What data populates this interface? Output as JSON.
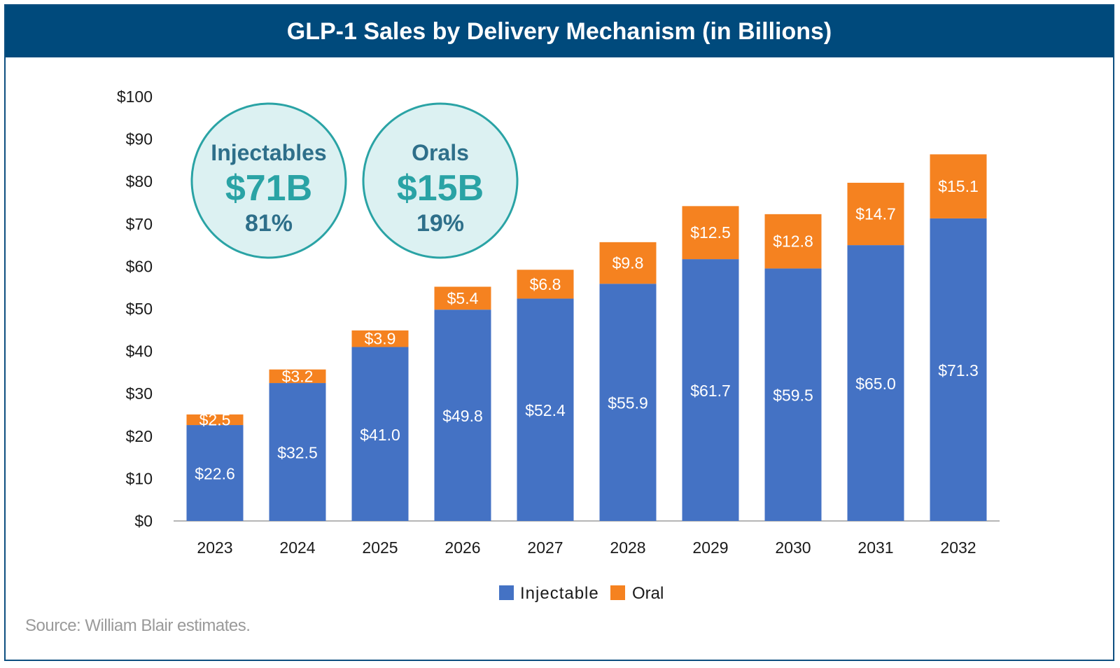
{
  "title": "GLP-1 Sales by Delivery Mechanism (in Billions)",
  "source": "Source: William Blair estimates.",
  "callouts": [
    {
      "label": "Injectables",
      "value": "$71B",
      "share": "81%"
    },
    {
      "label": "Orals",
      "value": "$15B",
      "share": "19%"
    }
  ],
  "colors": {
    "injectable": "#4472c4",
    "oral": "#f58220",
    "header": "#004a7c",
    "callout": "#2aa3a5",
    "callout_fill": "#dcf1f2",
    "callout_text": "#2e6f8a"
  },
  "chart_data": {
    "type": "bar",
    "stacked": true,
    "title": "GLP-1 Sales by Delivery Mechanism (in Billions)",
    "categories": [
      "2023",
      "2024",
      "2025",
      "2026",
      "2027",
      "2028",
      "2029",
      "2030",
      "2031",
      "2032"
    ],
    "series": [
      {
        "name": "Injectable",
        "values": [
          22.6,
          32.5,
          41.0,
          49.8,
          52.4,
          55.9,
          61.7,
          59.5,
          65.0,
          71.3
        ],
        "labels": [
          "$22.6",
          "$32.5",
          "$41.0",
          "$49.8",
          "$52.4",
          "$55.9",
          "$61.7",
          "$59.5",
          "$65.0",
          "$71.3"
        ]
      },
      {
        "name": "Oral",
        "values": [
          2.5,
          3.2,
          3.9,
          5.4,
          6.8,
          9.8,
          12.5,
          12.8,
          14.7,
          15.1
        ],
        "labels": [
          "$2.5",
          "$3.2",
          "$3.9",
          "$5.4",
          "$6.8",
          "$9.8",
          "$12.5",
          "$12.8",
          "$14.7",
          "$15.1"
        ]
      }
    ],
    "ylim": [
      0,
      100
    ],
    "yticks": [
      "$0",
      "$10",
      "$20",
      "$30",
      "$40",
      "$50",
      "$60",
      "$70",
      "$80",
      "$90",
      "$100"
    ],
    "grid": false,
    "legend": "bottom-center"
  }
}
